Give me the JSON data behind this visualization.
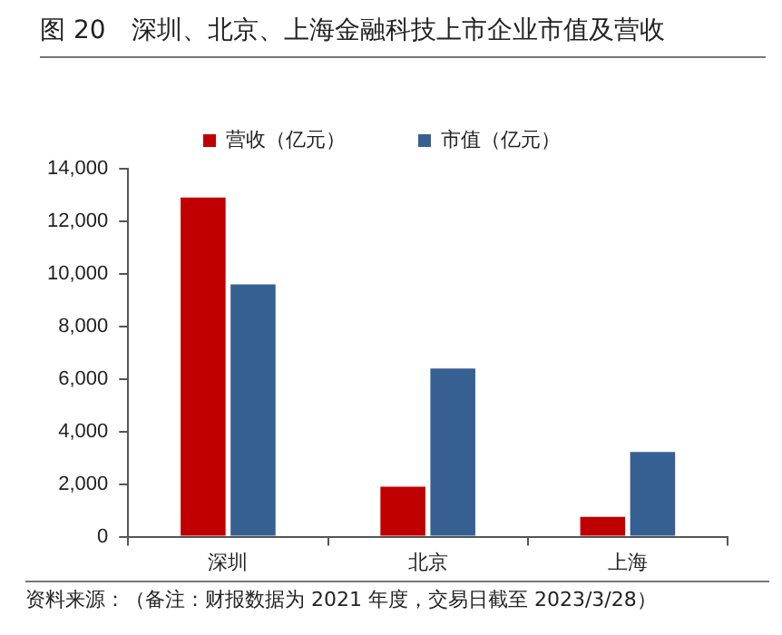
{
  "chart_data": {
    "type": "bar",
    "title": "图 20　深圳、北京、上海金融科技上市企业市值及营收",
    "categories": [
      "深圳",
      "北京",
      "上海"
    ],
    "series": [
      {
        "name": "营收（亿元）",
        "color": "#c00000",
        "values": [
          12900,
          1900,
          750
        ]
      },
      {
        "name": "市值（亿元）",
        "color": "#376092",
        "values": [
          9600,
          6400,
          3220
        ]
      }
    ],
    "ylim": [
      0,
      14000
    ],
    "yticks": [
      {
        "value": 0,
        "label": "0"
      },
      {
        "value": 2000,
        "label": "2,000"
      },
      {
        "value": 4000,
        "label": "4,000"
      },
      {
        "value": 6000,
        "label": "6,000"
      },
      {
        "value": 8000,
        "label": "8,000"
      },
      {
        "value": 10000,
        "label": "10,000"
      },
      {
        "value": 12000,
        "label": "12,000"
      },
      {
        "value": 14000,
        "label": "14,000"
      }
    ],
    "grid": false,
    "legend": "top",
    "annotations": [
      "资料来源：（备注：财报数据为 2021 年度，交易日截至 2023/3/28）"
    ]
  }
}
